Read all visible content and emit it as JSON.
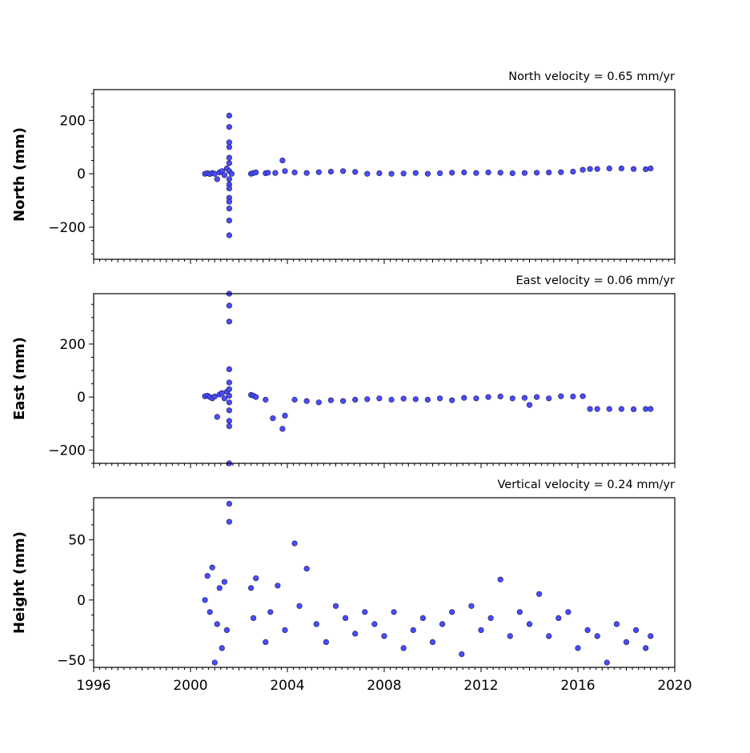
{
  "chart_data": [
    {
      "type": "scatter",
      "title": "North velocity = 0.65 mm/yr",
      "ylabel": "North (mm)",
      "xlim": [
        1996,
        2020
      ],
      "ylim": [
        -320,
        315
      ],
      "yticks": [
        -200,
        0,
        200
      ],
      "ytick_labels": [
        "−200",
        "0",
        "200"
      ],
      "grid": false,
      "series": [
        {
          "color": "#4b4bff",
          "x": [
            2000.6,
            2000.7,
            2000.8,
            2000.9,
            2001.0,
            2001.1,
            2001.2,
            2001.3,
            2001.4,
            2001.5,
            2001.6,
            2001.6,
            2001.6,
            2001.6,
            2001.6,
            2001.6,
            2001.6,
            2001.6,
            2001.6,
            2001.6,
            2001.6,
            2001.6,
            2001.6,
            2001.6,
            2001.6,
            2001.7,
            2002.5,
            2002.6,
            2002.7,
            2003.1,
            2003.2,
            2003.5,
            2003.8,
            2003.9,
            2004.3,
            2004.8,
            2005.3,
            2005.8,
            2006.3,
            2006.8,
            2007.3,
            2007.8,
            2008.3,
            2008.8,
            2009.3,
            2009.8,
            2010.3,
            2010.8,
            2011.3,
            2011.8,
            2012.3,
            2012.8,
            2013.3,
            2013.8,
            2014.3,
            2014.8,
            2015.3,
            2015.8,
            2016.2,
            2016.5,
            2016.8,
            2017.3,
            2017.8,
            2018.3,
            2018.8,
            2019.0
          ],
          "y": [
            0,
            2,
            -1,
            3,
            0,
            -20,
            5,
            10,
            -5,
            20,
            218,
            175,
            118,
            100,
            60,
            40,
            -20,
            -40,
            -55,
            -90,
            -105,
            -130,
            -175,
            -230,
            10,
            0,
            0,
            3,
            5,
            2,
            4,
            3,
            50,
            10,
            5,
            3,
            6,
            8,
            10,
            7,
            0,
            2,
            0,
            1,
            3,
            0,
            2,
            4,
            5,
            3,
            5,
            4,
            2,
            3,
            4,
            5,
            6,
            8,
            15,
            18,
            18,
            20,
            20,
            18,
            17,
            20
          ]
        }
      ]
    },
    {
      "type": "scatter",
      "title": "East velocity = 0.06 mm/yr",
      "ylabel": "East (mm)",
      "xlim": [
        1996,
        2020
      ],
      "ylim": [
        -250,
        390
      ],
      "yticks": [
        -200,
        0,
        200
      ],
      "ytick_labels": [
        "−200",
        "0",
        "200"
      ],
      "grid": false,
      "series": [
        {
          "color": "#4b4bff",
          "x": [
            2000.6,
            2000.7,
            2000.8,
            2000.9,
            2001.0,
            2001.1,
            2001.2,
            2001.3,
            2001.4,
            2001.5,
            2001.6,
            2001.6,
            2001.6,
            2001.6,
            2001.6,
            2001.6,
            2001.6,
            2001.6,
            2001.6,
            2001.6,
            2001.6,
            2001.6,
            2002.5,
            2002.6,
            2002.7,
            2003.1,
            2003.4,
            2003.8,
            2003.9,
            2004.3,
            2004.8,
            2005.3,
            2005.8,
            2006.3,
            2006.8,
            2007.3,
            2007.8,
            2008.3,
            2008.8,
            2009.3,
            2009.8,
            2010.3,
            2010.8,
            2011.3,
            2011.8,
            2012.3,
            2012.8,
            2013.3,
            2013.8,
            2014.0,
            2014.3,
            2014.8,
            2015.3,
            2015.8,
            2016.2,
            2016.5,
            2016.8,
            2017.3,
            2017.8,
            2018.3,
            2018.8,
            2019.0
          ],
          "y": [
            3,
            5,
            0,
            -5,
            2,
            -75,
            10,
            15,
            -5,
            20,
            390,
            345,
            285,
            105,
            55,
            30,
            -20,
            -50,
            -90,
            -110,
            -250,
            5,
            8,
            5,
            0,
            -10,
            -80,
            -120,
            -70,
            -10,
            -15,
            -20,
            -12,
            -15,
            -10,
            -8,
            -5,
            -10,
            -6,
            -8,
            -10,
            -5,
            -12,
            -3,
            -5,
            0,
            2,
            -5,
            -3,
            -30,
            0,
            -5,
            3,
            2,
            3,
            -45,
            -45,
            -45,
            -45,
            -46,
            -45,
            -45
          ]
        }
      ]
    },
    {
      "type": "scatter",
      "title": "Vertical velocity = 0.24 mm/yr",
      "ylabel": "Height (mm)",
      "xlim": [
        1996,
        2020
      ],
      "ylim": [
        -56,
        85
      ],
      "yticks": [
        -50,
        0,
        50
      ],
      "ytick_labels": [
        "−50",
        "0",
        "50"
      ],
      "xticks": [
        1996,
        2000,
        2004,
        2008,
        2012,
        2016,
        2020
      ],
      "xtick_labels": [
        "1996",
        "2000",
        "2004",
        "2008",
        "2012",
        "2016",
        "2020"
      ],
      "grid": false,
      "series": [
        {
          "color": "#4b4bff",
          "x": [
            2000.6,
            2000.7,
            2000.8,
            2000.9,
            2001.0,
            2001.1,
            2001.2,
            2001.3,
            2001.4,
            2001.5,
            2001.6,
            2001.6,
            2002.5,
            2002.6,
            2002.7,
            2003.1,
            2003.3,
            2003.6,
            2003.9,
            2004.3,
            2004.5,
            2004.8,
            2005.2,
            2005.6,
            2006.0,
            2006.4,
            2006.8,
            2007.2,
            2007.6,
            2008.0,
            2008.4,
            2008.8,
            2009.2,
            2009.6,
            2010.0,
            2010.4,
            2010.8,
            2011.2,
            2011.6,
            2012.0,
            2012.4,
            2012.8,
            2013.2,
            2013.6,
            2014.0,
            2014.4,
            2014.8,
            2015.2,
            2015.6,
            2016.0,
            2016.4,
            2016.8,
            2017.2,
            2017.6,
            2018.0,
            2018.4,
            2018.8,
            2019.0
          ],
          "y": [
            0,
            20,
            -10,
            27,
            -52,
            -20,
            10,
            -40,
            15,
            -25,
            80,
            65,
            10,
            -15,
            18,
            -35,
            -10,
            12,
            -25,
            47,
            -5,
            26,
            -20,
            -35,
            -5,
            -15,
            -28,
            -10,
            -20,
            -30,
            -10,
            -40,
            -25,
            -15,
            -35,
            -20,
            -10,
            -45,
            -5,
            -25,
            -15,
            17,
            -30,
            -10,
            -20,
            5,
            -30,
            -15,
            -10,
            -40,
            -25,
            -30,
            -52,
            -20,
            -35,
            -25,
            -40,
            -30
          ]
        }
      ]
    }
  ],
  "x_axis": {
    "ticks": [
      1996,
      2000,
      2004,
      2008,
      2012,
      2016,
      2020
    ],
    "tick_labels": [
      "1996",
      "2000",
      "2004",
      "2008",
      "2012",
      "2016",
      "2020"
    ]
  }
}
